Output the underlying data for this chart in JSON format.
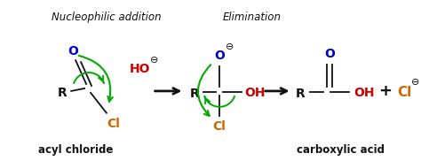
{
  "bg_color": "#ffffff",
  "title_nucleophilic": "Nucleophilic addition",
  "title_elimination": "Elimination",
  "label_acyl": "acyl chloride",
  "label_carboxylic": "carboxylic acid",
  "color_O_blue": "#0000cc",
  "color_Cl": "#cc6600",
  "color_black": "#111111",
  "color_red": "#cc0000",
  "color_green": "#00aa00"
}
